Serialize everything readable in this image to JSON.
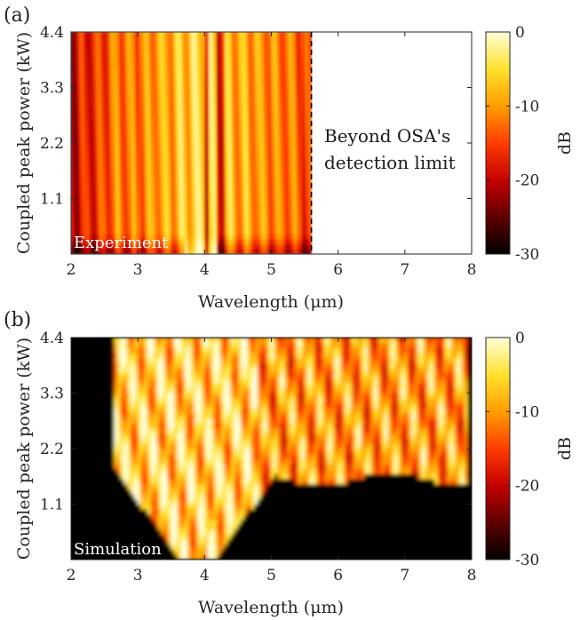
{
  "chart_data": [
    {
      "panel": "(a)",
      "type": "heatmap",
      "inset_label": "Experiment",
      "annotation": [
        "Beyond OSA's",
        "detection limit"
      ],
      "xlabel": "Wavelength (μm)",
      "ylabel": "Coupled peak power (kW)",
      "xlim": [
        2,
        8
      ],
      "ylim": [
        0,
        4.4
      ],
      "xticks": [
        2,
        3,
        4,
        5,
        6,
        7,
        8
      ],
      "yticks": [
        1.1,
        2.2,
        3.3,
        4.4
      ],
      "ytick_labels": [
        "1.1",
        "2.2",
        "3.3",
        "4.4"
      ],
      "data_x_max": 5.6,
      "cutoff_line_x": 5.6,
      "colorbar": {
        "label": "dB",
        "range": [
          -30,
          0
        ],
        "ticks": [
          0,
          -10,
          -20,
          -30
        ]
      }
    },
    {
      "panel": "(b)",
      "type": "heatmap",
      "inset_label": "Simulation",
      "xlabel": "Wavelength (μm)",
      "ylabel": "Coupled peak power (kW)",
      "xlim": [
        2,
        8
      ],
      "ylim": [
        0,
        4.4
      ],
      "xticks": [
        2,
        3,
        4,
        5,
        6,
        7,
        8
      ],
      "yticks": [
        1.1,
        2.2,
        3.3,
        4.4
      ],
      "ytick_labels": [
        "1.1",
        "2.2",
        "3.3",
        "4.4"
      ],
      "colorbar": {
        "label": "dB",
        "range": [
          -30,
          0
        ],
        "ticks": [
          0,
          -10,
          -20,
          -30
        ]
      }
    }
  ],
  "colormap_stops": [
    "#000000",
    "#5a0000",
    "#c40000",
    "#ff3c00",
    "#ff9a00",
    "#ffe12a",
    "#ffffd8"
  ]
}
